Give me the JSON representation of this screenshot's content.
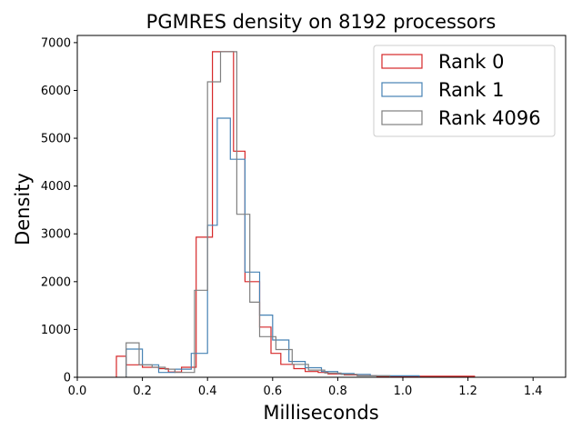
{
  "chart_data": {
    "type": "histogram-step",
    "title": "PGMRES density on 8192 processors",
    "xlabel": "Milliseconds",
    "ylabel": "Density",
    "xlim": [
      0.0,
      1.5
    ],
    "ylim": [
      0,
      7150
    ],
    "xticks": [
      "0.0",
      "0.2",
      "0.4",
      "0.6",
      "0.8",
      "1.0",
      "1.2",
      "1.4"
    ],
    "yticks": [
      "0",
      "1000",
      "2000",
      "3000",
      "4000",
      "5000",
      "6000",
      "7000"
    ],
    "legend_placement": "top-right",
    "series": [
      {
        "name": "Rank 0",
        "color": "#d62728",
        "edges": [
          0.12,
          0.15,
          0.2,
          0.25,
          0.28,
          0.32,
          0.365,
          0.415,
          0.45,
          0.48,
          0.515,
          0.56,
          0.595,
          0.625,
          0.665,
          0.7,
          0.74,
          0.77,
          0.82,
          0.86,
          0.92,
          1.22
        ],
        "values": [
          440,
          260,
          210,
          180,
          110,
          210,
          2930,
          6810,
          6810,
          4730,
          2000,
          1050,
          500,
          270,
          180,
          120,
          100,
          70,
          50,
          30,
          20
        ]
      },
      {
        "name": "Rank 1",
        "color": "#4682b4",
        "edges": [
          0.15,
          0.2,
          0.25,
          0.3,
          0.35,
          0.4,
          0.43,
          0.47,
          0.515,
          0.56,
          0.6,
          0.65,
          0.7,
          0.75,
          0.8,
          0.85,
          0.9,
          1.05
        ],
        "values": [
          590,
          260,
          100,
          170,
          500,
          3180,
          5420,
          4560,
          2200,
          1300,
          780,
          330,
          200,
          120,
          80,
          60,
          30
        ]
      },
      {
        "name": "Rank 4096",
        "color": "#808080",
        "edges": [
          0.15,
          0.19,
          0.23,
          0.27,
          0.3,
          0.36,
          0.4,
          0.44,
          0.49,
          0.53,
          0.56,
          0.61,
          0.66,
          0.71,
          0.76,
          0.81,
          0.86,
          0.96
        ],
        "values": [
          720,
          260,
          210,
          170,
          100,
          1820,
          6180,
          6810,
          3410,
          1570,
          850,
          580,
          270,
          150,
          90,
          60,
          30
        ]
      }
    ]
  }
}
